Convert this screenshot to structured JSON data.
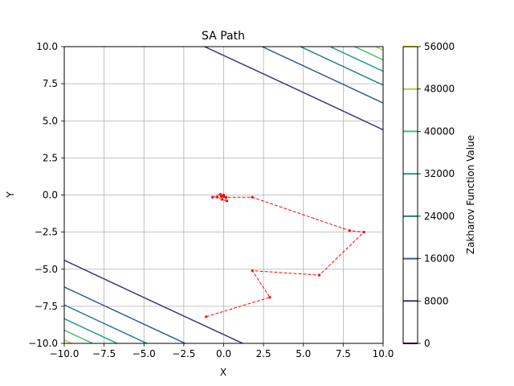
{
  "chart_data": {
    "type": "line",
    "title": "SA Path",
    "xlabel": "X",
    "ylabel": "Y",
    "xlim": [
      -10,
      10
    ],
    "ylim": [
      -10,
      10
    ],
    "xticks": [
      -10.0,
      -7.5,
      -5.0,
      -2.5,
      0.0,
      2.5,
      5.0,
      7.5,
      10.0
    ],
    "yticks": [
      -10.0,
      -7.5,
      -5.0,
      -2.5,
      0.0,
      2.5,
      5.0,
      7.5,
      10.0
    ],
    "grid": true,
    "contour": {
      "function": "Zakharov",
      "levels": [
        8000,
        16000,
        24000,
        32000,
        40000,
        48000,
        56000
      ],
      "colors": [
        "#46327e",
        "#365c8d",
        "#277f8e",
        "#1fa187",
        "#4ac16d",
        "#a0da39",
        "#fde725"
      ]
    },
    "colorbar": {
      "label": "Zakharov Function Value",
      "ticks": [
        0,
        8000,
        16000,
        24000,
        32000,
        40000,
        48000,
        56000
      ],
      "tick_labels": [
        "0",
        "8000",
        "16000",
        "24000",
        "32000",
        "40000",
        "48000",
        "56000"
      ],
      "colors": [
        "#440154",
        "#46327e",
        "#365c8d",
        "#277f8e",
        "#1fa187",
        "#4ac16d",
        "#a0da39",
        "#fde725"
      ]
    },
    "series": [
      {
        "color": "#ff0000",
        "style": "dashed",
        "marker": "dot",
        "points": [
          [
            -1.1,
            -8.2
          ],
          [
            2.9,
            -6.9
          ],
          [
            1.8,
            -5.1
          ],
          [
            6.0,
            -5.4
          ],
          [
            8.8,
            -2.5
          ],
          [
            7.9,
            -2.4
          ],
          [
            1.8,
            -0.15
          ],
          [
            0.15,
            -0.15
          ],
          [
            -0.15,
            -0.1
          ],
          [
            0.0,
            0.0
          ],
          [
            0.2,
            -0.4
          ],
          [
            -0.1,
            -0.3
          ],
          [
            -0.4,
            -0.15
          ],
          [
            -0.7,
            -0.15
          ],
          [
            -0.2,
            0.05
          ],
          [
            0.0,
            -0.1
          ]
        ]
      }
    ]
  }
}
